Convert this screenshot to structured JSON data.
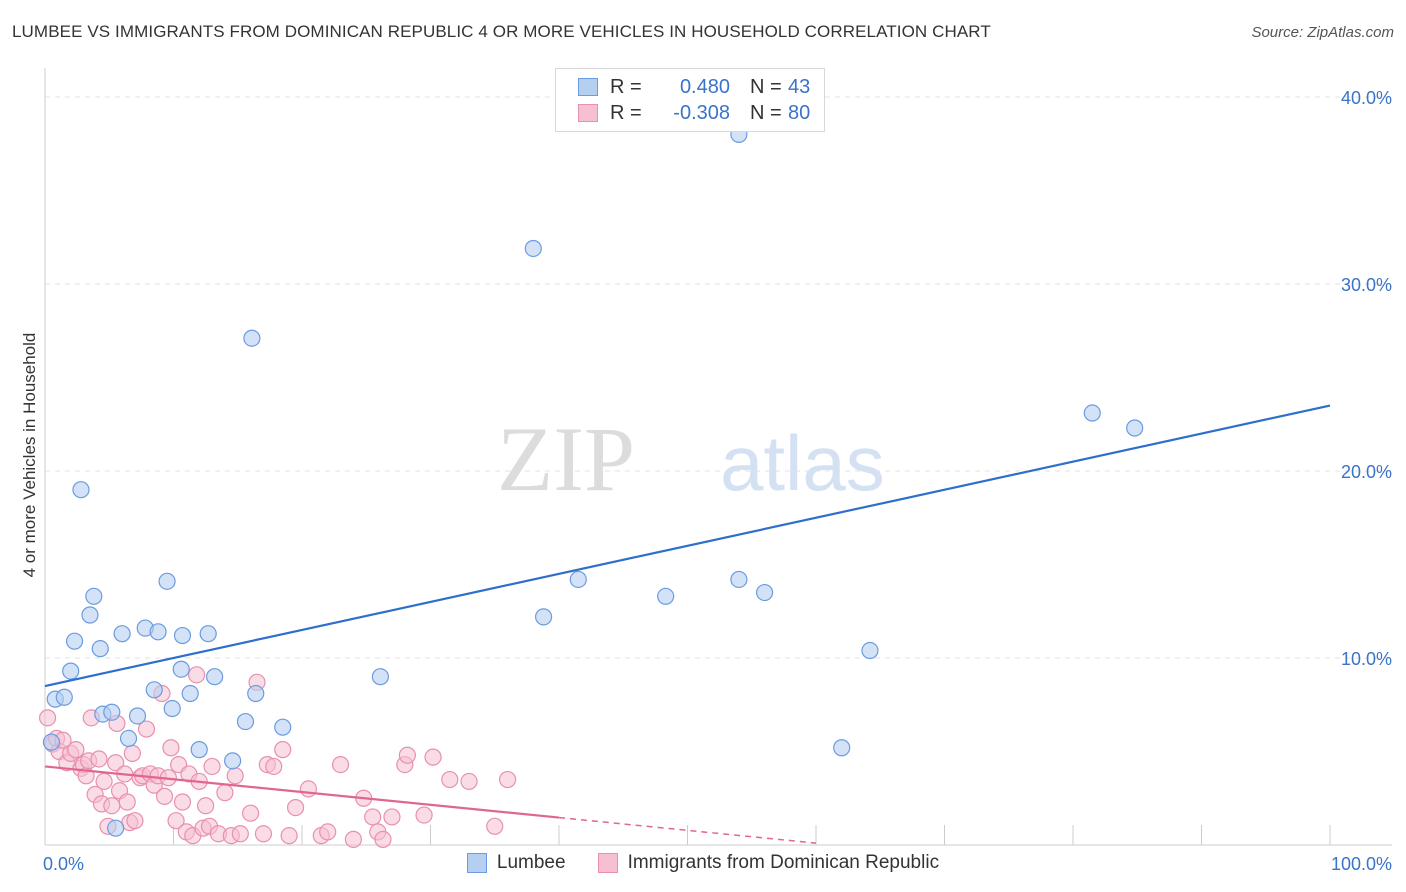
{
  "title": "LUMBEE VS IMMIGRANTS FROM DOMINICAN REPUBLIC 4 OR MORE VEHICLES IN HOUSEHOLD CORRELATION CHART",
  "source": "Source: ZipAtlas.com",
  "watermark": {
    "part1": "ZIP",
    "part2": "atlas"
  },
  "legend": {
    "rows": [
      {
        "r_label": "R =",
        "r_value": "0.480",
        "n_label": "N =",
        "n_value": "43"
      },
      {
        "r_label": "R =",
        "r_value": "-0.308",
        "n_label": "N =",
        "n_value": "80"
      }
    ]
  },
  "colors": {
    "lumbee_fill": "#b5cff0",
    "lumbee_stroke": "#6b9be0",
    "lumbee_line": "#2f6fcc",
    "dominican_fill": "#f6c0d2",
    "dominican_stroke": "#e890ad",
    "dominican_line": "#e06690",
    "axis_text": "#3a73c9",
    "grid": "#e0e0e0"
  },
  "chart_data": {
    "type": "scatter",
    "title": "LUMBEE VS IMMIGRANTS FROM DOMINICAN REPUBLIC 4 OR MORE VEHICLES IN HOUSEHOLD CORRELATION CHART",
    "xlabel": "",
    "ylabel": "4 or more Vehicles in Household",
    "xlim": [
      0,
      100
    ],
    "ylim": [
      0,
      40
    ],
    "x_tick_labels": [
      {
        "value": 0,
        "label": "0.0%"
      },
      {
        "value": 100,
        "label": "100.0%"
      }
    ],
    "y_tick_labels": [
      {
        "value": 10,
        "label": "10.0%"
      },
      {
        "value": 20,
        "label": "20.0%"
      },
      {
        "value": 30,
        "label": "30.0%"
      },
      {
        "value": 40,
        "label": "40.0%"
      }
    ],
    "grid": true,
    "legend_position": "top-center",
    "series": [
      {
        "name": "Lumbee",
        "r": 0.48,
        "n": 43,
        "trend": {
          "x": [
            0,
            100
          ],
          "y": [
            8.5,
            23.5
          ],
          "dashed_from": null
        },
        "points": [
          [
            0.5,
            5.5
          ],
          [
            0.8,
            7.8
          ],
          [
            1.5,
            7.9
          ],
          [
            2.0,
            9.3
          ],
          [
            2.3,
            10.9
          ],
          [
            2.8,
            19.0
          ],
          [
            3.5,
            12.3
          ],
          [
            3.8,
            13.3
          ],
          [
            4.3,
            10.5
          ],
          [
            4.5,
            7.0
          ],
          [
            5.2,
            7.1
          ],
          [
            5.5,
            0.9
          ],
          [
            6.0,
            11.3
          ],
          [
            6.5,
            5.7
          ],
          [
            7.2,
            6.9
          ],
          [
            7.8,
            11.6
          ],
          [
            8.5,
            8.3
          ],
          [
            8.8,
            11.4
          ],
          [
            9.5,
            14.1
          ],
          [
            9.9,
            7.3
          ],
          [
            10.6,
            9.4
          ],
          [
            10.7,
            11.2
          ],
          [
            11.3,
            8.1
          ],
          [
            12.0,
            5.1
          ],
          [
            12.7,
            11.3
          ],
          [
            13.2,
            9.0
          ],
          [
            14.6,
            4.5
          ],
          [
            15.6,
            6.6
          ],
          [
            16.1,
            27.1
          ],
          [
            16.4,
            8.1
          ],
          [
            18.5,
            6.3
          ],
          [
            26.1,
            9.0
          ],
          [
            38.0,
            31.9
          ],
          [
            38.8,
            12.2
          ],
          [
            41.5,
            14.2
          ],
          [
            48.3,
            13.3
          ],
          [
            54.0,
            38.0
          ],
          [
            54.0,
            14.2
          ],
          [
            56.0,
            13.5
          ],
          [
            62.0,
            5.2
          ],
          [
            64.2,
            10.4
          ],
          [
            81.5,
            23.1
          ],
          [
            84.8,
            22.3
          ]
        ]
      },
      {
        "name": "Immigrants from Dominican Republic",
        "r": -0.308,
        "n": 80,
        "trend": {
          "x": [
            0,
            60
          ],
          "y": [
            4.2,
            0.1
          ],
          "dashed_from": 40
        },
        "points": [
          [
            0.2,
            6.8
          ],
          [
            0.6,
            5.4
          ],
          [
            0.9,
            5.7
          ],
          [
            1.1,
            5.0
          ],
          [
            1.4,
            5.6
          ],
          [
            1.7,
            4.4
          ],
          [
            2.0,
            4.9
          ],
          [
            2.4,
            5.1
          ],
          [
            2.8,
            4.1
          ],
          [
            3.0,
            4.3
          ],
          [
            3.2,
            3.7
          ],
          [
            3.4,
            4.5
          ],
          [
            3.6,
            6.8
          ],
          [
            3.9,
            2.7
          ],
          [
            4.2,
            4.6
          ],
          [
            4.4,
            2.2
          ],
          [
            4.6,
            3.4
          ],
          [
            4.9,
            1.0
          ],
          [
            5.2,
            2.1
          ],
          [
            5.5,
            4.4
          ],
          [
            5.6,
            6.5
          ],
          [
            5.8,
            2.9
          ],
          [
            6.2,
            3.8
          ],
          [
            6.4,
            2.3
          ],
          [
            6.6,
            1.2
          ],
          [
            6.8,
            4.9
          ],
          [
            7.0,
            1.3
          ],
          [
            7.4,
            3.6
          ],
          [
            7.6,
            3.7
          ],
          [
            7.9,
            6.2
          ],
          [
            8.2,
            3.8
          ],
          [
            8.5,
            3.2
          ],
          [
            8.8,
            3.7
          ],
          [
            9.1,
            8.1
          ],
          [
            9.3,
            2.6
          ],
          [
            9.6,
            3.6
          ],
          [
            9.8,
            5.2
          ],
          [
            10.2,
            1.3
          ],
          [
            10.4,
            4.3
          ],
          [
            10.7,
            2.3
          ],
          [
            11.0,
            0.7
          ],
          [
            11.2,
            3.8
          ],
          [
            11.5,
            0.5
          ],
          [
            11.8,
            9.1
          ],
          [
            12.0,
            3.4
          ],
          [
            12.3,
            0.9
          ],
          [
            12.5,
            2.1
          ],
          [
            12.8,
            1.0
          ],
          [
            13.0,
            4.2
          ],
          [
            13.5,
            0.6
          ],
          [
            14.0,
            2.8
          ],
          [
            14.5,
            0.5
          ],
          [
            14.8,
            3.7
          ],
          [
            15.2,
            0.6
          ],
          [
            16.0,
            1.7
          ],
          [
            16.5,
            8.7
          ],
          [
            17.0,
            0.6
          ],
          [
            17.3,
            4.3
          ],
          [
            17.8,
            4.2
          ],
          [
            18.5,
            5.1
          ],
          [
            19.0,
            0.5
          ],
          [
            19.5,
            2.0
          ],
          [
            20.5,
            3.0
          ],
          [
            21.5,
            0.5
          ],
          [
            22.0,
            0.7
          ],
          [
            23.0,
            4.3
          ],
          [
            24.0,
            0.3
          ],
          [
            24.8,
            2.5
          ],
          [
            25.5,
            1.5
          ],
          [
            25.9,
            0.7
          ],
          [
            26.3,
            0.3
          ],
          [
            27.0,
            1.5
          ],
          [
            28.0,
            4.3
          ],
          [
            28.2,
            4.8
          ],
          [
            29.5,
            1.6
          ],
          [
            30.2,
            4.7
          ],
          [
            31.5,
            3.5
          ],
          [
            33.0,
            3.4
          ],
          [
            35.0,
            1.0
          ],
          [
            36.0,
            3.5
          ]
        ]
      }
    ],
    "x_legend_labels": [
      "Lumbee",
      "Immigrants from Dominican Republic"
    ]
  }
}
